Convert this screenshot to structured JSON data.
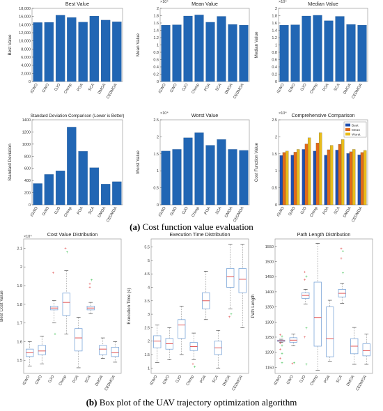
{
  "captions": {
    "a_letter": "(a)",
    "a_text": "Cost function value evaluation",
    "b_letter": "(b)",
    "b_text": "Box plot of the UAV trajectory optimization algorithm"
  },
  "colors": {
    "bar": "#2166b4",
    "best": "#1f4fb0",
    "mean": "#e06a1a",
    "worst": "#e8bc1c",
    "box": "#7da7d9",
    "median": "#e04040",
    "outlier_red": "#e05050",
    "outlier_green": "#3cc050"
  },
  "chart_data": [
    {
      "type": "bar",
      "title": "Best Value",
      "ylabel": "Best Value",
      "categories": [
        "iGWO",
        "GWO",
        "GJO",
        "Chimp",
        "POA",
        "SCA",
        "DMOA",
        "CEDMOA"
      ],
      "values": [
        14500,
        14550,
        16300,
        15750,
        14600,
        16100,
        15100,
        14700
      ],
      "ylim": [
        0,
        18000
      ],
      "yticks": [
        "0",
        "2,000",
        "4,000",
        "6,000",
        "8,000",
        "10,000",
        "12,000",
        "14,000",
        "16,000",
        "18,000"
      ],
      "exponent": ""
    },
    {
      "type": "bar",
      "title": "Mean Value",
      "ylabel": "Mean Value",
      "categories": [
        "iGWO",
        "GWO",
        "GJO",
        "Chimp",
        "POA",
        "SCA",
        "DMOA",
        "CEDMOA"
      ],
      "values": [
        1.54,
        1.55,
        1.79,
        1.82,
        1.62,
        1.78,
        1.56,
        1.54
      ],
      "ylim": [
        0,
        2
      ],
      "yticks": [
        "0",
        "0.2",
        "0.4",
        "0.6",
        "0.8",
        "1",
        "1.2",
        "1.4",
        "1.6",
        "1.8",
        "2"
      ],
      "exponent": "×10⁴"
    },
    {
      "type": "bar",
      "title": "Median Value",
      "ylabel": "Median Value",
      "categories": [
        "iGWO",
        "GWO",
        "GJO",
        "Chimp",
        "POA",
        "SCA",
        "DMOA",
        "CEDMOA"
      ],
      "values": [
        1.54,
        1.55,
        1.79,
        1.81,
        1.66,
        1.78,
        1.56,
        1.54
      ],
      "ylim": [
        0,
        2
      ],
      "yticks": [
        "0",
        "0.2",
        "0.4",
        "0.6",
        "0.8",
        "1",
        "1.2",
        "1.4",
        "1.6",
        "1.8",
        "2"
      ],
      "exponent": "×10⁴"
    },
    {
      "type": "bar",
      "title": "Standard Deviation Comparison (Lower is Better)",
      "ylabel": "Standard Deviation",
      "categories": [
        "iGWO",
        "GWO",
        "GJO",
        "Chimp",
        "POA",
        "SCA",
        "DMOA",
        "CEDMOA"
      ],
      "values": [
        350,
        500,
        560,
        1280,
        880,
        610,
        340,
        380
      ],
      "ylim": [
        0,
        1400
      ],
      "yticks": [
        "0",
        "200",
        "400",
        "600",
        "800",
        "1000",
        "1200",
        "1400"
      ],
      "exponent": ""
    },
    {
      "type": "bar",
      "title": "Worst Value",
      "ylabel": "Worst Value",
      "categories": [
        "iGWO",
        "GWO",
        "GJO",
        "Chimp",
        "POA",
        "SCA",
        "DMOA",
        "CEDMOA"
      ],
      "values": [
        1.58,
        1.63,
        1.97,
        2.12,
        1.75,
        1.92,
        1.63,
        1.6
      ],
      "ylim": [
        0,
        2.5
      ],
      "yticks": [
        "0",
        "0.5",
        "1",
        "1.5",
        "2",
        "2.5"
      ],
      "exponent": "×10⁴"
    },
    {
      "type": "bar",
      "title": "Comprehensive Comparison",
      "ylabel": "Cost Function Value",
      "categories": [
        "iGWO",
        "GWO",
        "GJO",
        "Chimp",
        "POA",
        "SCA",
        "DMOA",
        "CEDMOA"
      ],
      "series": [
        {
          "name": "Best",
          "values": [
            1.45,
            1.46,
            1.63,
            1.58,
            1.46,
            1.61,
            1.51,
            1.47
          ]
        },
        {
          "name": "Mean",
          "values": [
            1.54,
            1.55,
            1.79,
            1.82,
            1.62,
            1.78,
            1.56,
            1.54
          ]
        },
        {
          "name": "Worst",
          "values": [
            1.58,
            1.63,
            1.97,
            2.12,
            1.75,
            1.92,
            1.63,
            1.6
          ]
        }
      ],
      "ylim": [
        0,
        2.5
      ],
      "yticks": [
        "0",
        "0.5",
        "1",
        "1.5",
        "2",
        "2.5"
      ],
      "exponent": "×10⁴",
      "legend": "top-right"
    },
    {
      "type": "box",
      "title": "Cost Value Distribution",
      "ylabel": "Best Cost Value",
      "categories": [
        "iGWO",
        "GWO",
        "GJO",
        "Chimp",
        "POA",
        "SCA",
        "DMOA",
        "CEDMOA"
      ],
      "boxes": [
        {
          "min": 1.47,
          "q1": 1.52,
          "median": 1.54,
          "q3": 1.56,
          "max": 1.6,
          "outliers": []
        },
        {
          "min": 1.48,
          "q1": 1.53,
          "median": 1.55,
          "q3": 1.58,
          "max": 1.63,
          "outliers": []
        },
        {
          "min": 1.7,
          "q1": 1.77,
          "median": 1.78,
          "q3": 1.79,
          "max": 1.82,
          "outliers": [
            1.97,
            1.64
          ]
        },
        {
          "min": 1.64,
          "q1": 1.74,
          "median": 1.81,
          "q3": 1.86,
          "max": 1.98,
          "outliers": [
            2.1,
            2.08
          ]
        },
        {
          "min": 1.46,
          "q1": 1.55,
          "median": 1.62,
          "q3": 1.67,
          "max": 1.73,
          "outliers": []
        },
        {
          "min": 1.75,
          "q1": 1.77,
          "median": 1.78,
          "q3": 1.79,
          "max": 1.81,
          "outliers": [
            1.91,
            1.93,
            1.89
          ]
        },
        {
          "min": 1.51,
          "q1": 1.53,
          "median": 1.56,
          "q3": 1.58,
          "max": 1.62,
          "outliers": []
        },
        {
          "min": 1.49,
          "q1": 1.52,
          "median": 1.54,
          "q3": 1.57,
          "max": 1.6,
          "outliers": []
        }
      ],
      "ylim": [
        1.43,
        2.15
      ],
      "yticks": [
        [
          "1.5",
          1.5
        ],
        [
          "1.6",
          1.6
        ],
        [
          "1.7",
          1.7
        ],
        [
          "1.8",
          1.8
        ],
        [
          "1.9",
          1.9
        ],
        [
          "2",
          2.0
        ],
        [
          "2.1",
          2.1
        ]
      ],
      "exponent": "×10⁴"
    },
    {
      "type": "box",
      "title": "Execution Time Distribution",
      "ylabel": "Execution Time (s)",
      "categories": [
        "iGWO",
        "GWO",
        "GJO",
        "Chimp",
        "POA",
        "SCA",
        "DMOA",
        "CEDMOA"
      ],
      "boxes": [
        {
          "min": 1.2,
          "q1": 1.75,
          "median": 2.0,
          "q3": 2.2,
          "max": 2.6,
          "outliers": []
        },
        {
          "min": 1.3,
          "q1": 1.7,
          "median": 1.9,
          "q3": 2.1,
          "max": 2.5,
          "outliers": []
        },
        {
          "min": 1.5,
          "q1": 2.1,
          "median": 2.6,
          "q3": 2.8,
          "max": 3.3,
          "outliers": []
        },
        {
          "min": 1.3,
          "q1": 1.65,
          "median": 1.8,
          "q3": 1.95,
          "max": 2.3,
          "outliers": [
            1.15,
            1.05
          ]
        },
        {
          "min": 2.8,
          "q1": 3.2,
          "median": 3.5,
          "q3": 3.8,
          "max": 4.6,
          "outliers": []
        },
        {
          "min": 1.0,
          "q1": 1.5,
          "median": 1.75,
          "q3": 2.0,
          "max": 2.4,
          "outliers": []
        },
        {
          "min": 3.2,
          "q1": 4.0,
          "median": 4.4,
          "q3": 4.7,
          "max": 5.6,
          "outliers": [
            2.9,
            3.0
          ]
        },
        {
          "min": 2.5,
          "q1": 3.8,
          "median": 4.3,
          "q3": 4.7,
          "max": 5.6,
          "outliers": []
        }
      ],
      "ylim": [
        0.8,
        5.8
      ],
      "yticks": [
        [
          "1",
          1
        ],
        [
          "1.5",
          1.5
        ],
        [
          "2",
          2
        ],
        [
          "2.5",
          2.5
        ],
        [
          "3",
          3
        ],
        [
          "3.5",
          3.5
        ],
        [
          "4",
          4
        ],
        [
          "4.5",
          4.5
        ],
        [
          "5",
          5
        ],
        [
          "5.5",
          5.5
        ]
      ],
      "exponent": ""
    },
    {
      "type": "box",
      "title": "Path Length Distribution",
      "ylabel": "Path Length",
      "categories": [
        "iGWO",
        "GWO",
        "GJO",
        "Chimp",
        "POA",
        "SCA",
        "DMOA",
        "CEDMOA"
      ],
      "boxes": [
        {
          "min": 1232,
          "q1": 1236,
          "median": 1238,
          "q3": 1240,
          "max": 1243,
          "outliers": [
            1258,
            1252,
            1230,
            1222,
            1210,
            1196,
            1180,
            1165
          ]
        },
        {
          "min": 1222,
          "q1": 1233,
          "median": 1240,
          "q3": 1248,
          "max": 1260,
          "outliers": [
            1162,
            1165
          ]
        },
        {
          "min": 1360,
          "q1": 1378,
          "median": 1388,
          "q3": 1397,
          "max": 1408,
          "outliers": [
            1465,
            1450,
            1440,
            1280,
            1250,
            1160
          ]
        },
        {
          "min": 1140,
          "q1": 1220,
          "median": 1315,
          "q3": 1432,
          "max": 1560,
          "outliers": []
        },
        {
          "min": 1170,
          "q1": 1185,
          "median": 1245,
          "q3": 1350,
          "max": 1372,
          "outliers": []
        },
        {
          "min": 1362,
          "q1": 1383,
          "median": 1395,
          "q3": 1408,
          "max": 1428,
          "outliers": [
            1543,
            1535,
            1510,
            1462
          ]
        },
        {
          "min": 1160,
          "q1": 1195,
          "median": 1220,
          "q3": 1245,
          "max": 1282,
          "outliers": []
        },
        {
          "min": 1160,
          "q1": 1188,
          "median": 1205,
          "q3": 1228,
          "max": 1260,
          "outliers": []
        }
      ],
      "ylim": [
        1130,
        1575
      ],
      "yticks": [
        [
          "1150",
          1150
        ],
        [
          "1200",
          1200
        ],
        [
          "1250",
          1250
        ],
        [
          "1300",
          1300
        ],
        [
          "1350",
          1350
        ],
        [
          "1400",
          1400
        ],
        [
          "1450",
          1450
        ],
        [
          "1500",
          1500
        ],
        [
          "1550",
          1550
        ]
      ],
      "exponent": ""
    }
  ]
}
